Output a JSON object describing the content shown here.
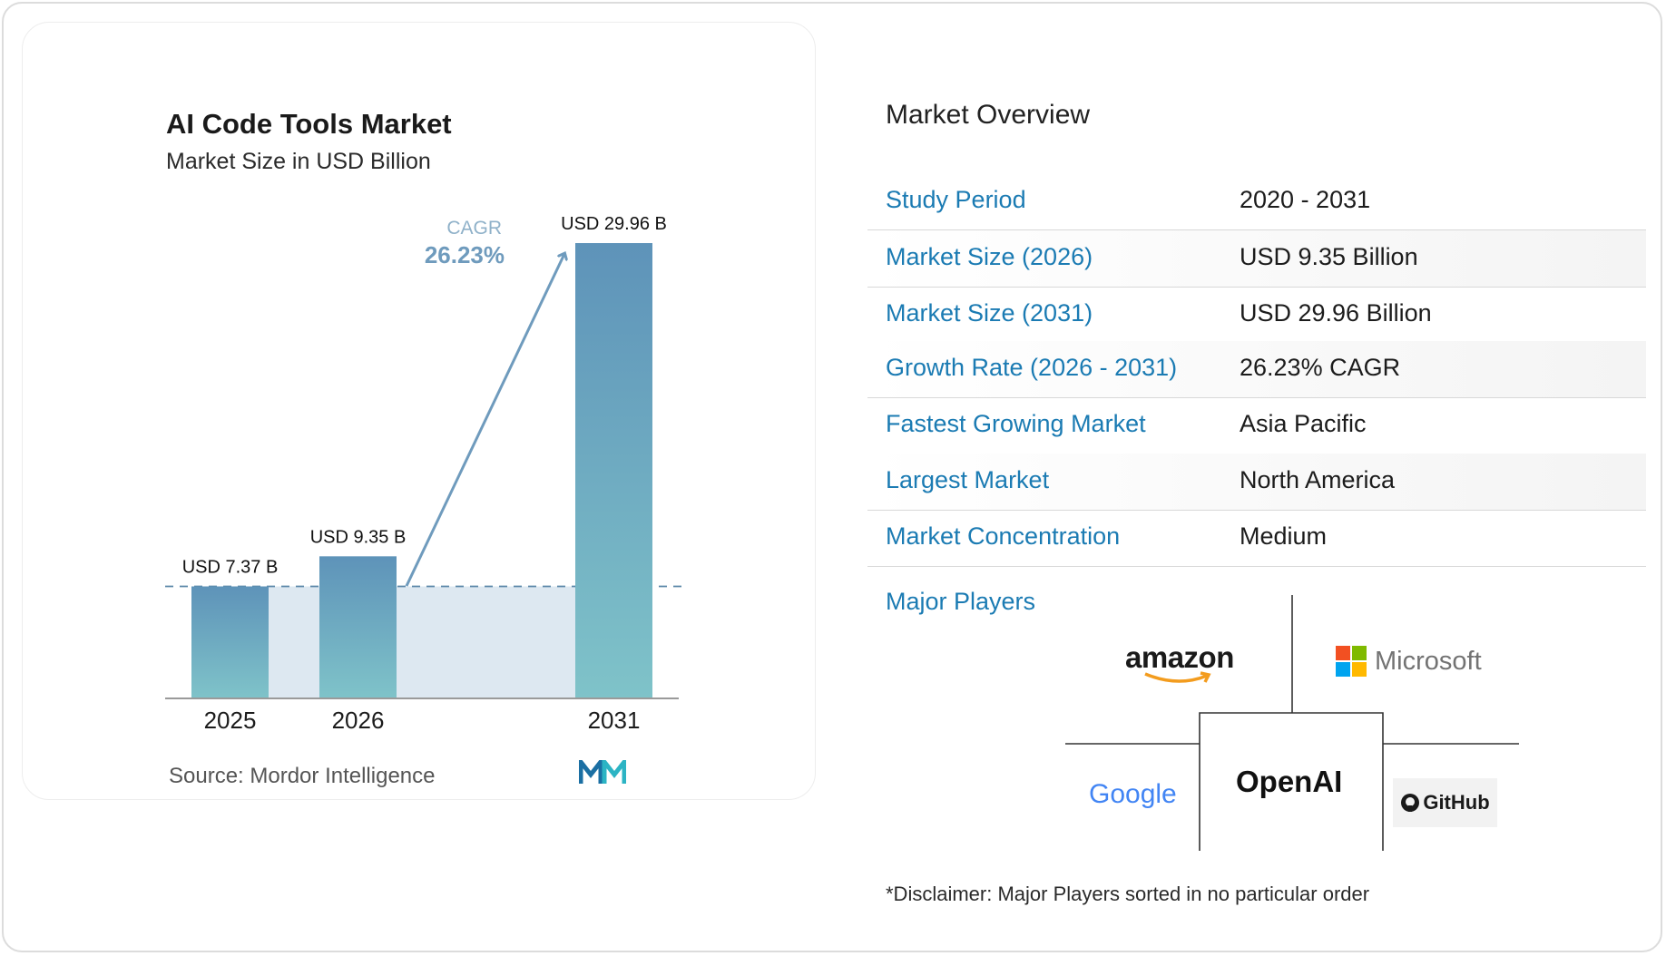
{
  "chart_data": {
    "type": "bar",
    "title": "AI  Code Tools Market",
    "subtitle": "Market Size in USD Billion",
    "categories": [
      "2025",
      "2026",
      "2031"
    ],
    "values": [
      7.37,
      9.35,
      29.96
    ],
    "data_labels": [
      "USD 7.37 B",
      "USD 9.35 B",
      "USD 29.96 B"
    ],
    "cagr_label": "CAGR",
    "cagr_value": "26.23%",
    "ylim": [
      0,
      29.96
    ],
    "grid": false,
    "source": "Source: Mordor Intelligence"
  },
  "overview": {
    "title": "Market Overview",
    "rows": [
      {
        "key": "Study Period",
        "value": "2020 - 2031"
      },
      {
        "key": "Market Size (2026)",
        "value": "USD 9.35 Billion"
      },
      {
        "key": "Market Size (2031)",
        "value": "USD 29.96 Billion"
      },
      {
        "key": "Growth Rate (2026 - 2031)",
        "value": "26.23% CAGR"
      },
      {
        "key": "Fastest Growing Market",
        "value": "Asia Pacific"
      },
      {
        "key": "Largest Market",
        "value": "North America"
      },
      {
        "key": "Market Concentration",
        "value": "Medium"
      }
    ],
    "players_label": "Major Players",
    "players": [
      "amazon",
      "Microsoft",
      "Google",
      "OpenAI",
      "GitHub"
    ],
    "disclaimer": "*Disclaimer: Major Players sorted in no particular order"
  },
  "colors": {
    "accent": "#1b7bb3",
    "bar_top": "#5e93b9",
    "bar_bottom": "#7fc3c9",
    "cagr": "#6f9bbd",
    "band": "#dde8f1"
  }
}
